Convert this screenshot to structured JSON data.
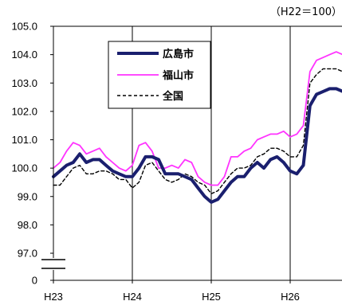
{
  "chart_data": {
    "type": "line",
    "unit_note": "（H22＝100）",
    "x_ticks": [
      "H23",
      "H24",
      "H25",
      "H26"
    ],
    "y_ticks": [
      "105.0",
      "104.0",
      "103.0",
      "102.0",
      "101.0",
      "100.0",
      "99.0",
      "98.0",
      "97.0",
      "0"
    ],
    "ylim": [
      96.5,
      105.0
    ],
    "axis_break": true,
    "grid": "vertical",
    "legend_position": "top-left",
    "months_per_tick": 12,
    "series": [
      {
        "name": "広島市",
        "color": "#1a1f6e",
        "style": "solid-thick",
        "values": [
          99.7,
          99.9,
          100.1,
          100.2,
          100.5,
          100.2,
          100.3,
          100.3,
          100.1,
          99.9,
          99.8,
          99.7,
          99.7,
          100.0,
          100.4,
          100.4,
          100.3,
          99.8,
          99.8,
          99.8,
          99.7,
          99.6,
          99.3,
          99.0,
          98.8,
          98.9,
          99.2,
          99.5,
          99.7,
          99.7,
          100.0,
          100.2,
          100.0,
          100.3,
          100.4,
          100.2,
          99.9,
          99.8,
          100.1,
          102.2,
          102.6,
          102.7,
          102.8,
          102.8,
          102.7
        ]
      },
      {
        "name": "福山市",
        "color": "#ff33ff",
        "style": "solid",
        "values": [
          100.0,
          100.2,
          100.6,
          100.9,
          100.8,
          100.5,
          100.6,
          100.7,
          100.4,
          100.2,
          100.0,
          99.9,
          100.1,
          100.8,
          100.9,
          100.6,
          100.0,
          100.0,
          100.1,
          100.0,
          100.3,
          100.2,
          99.7,
          99.5,
          99.4,
          99.4,
          99.7,
          100.4,
          100.4,
          100.6,
          100.7,
          101.0,
          101.1,
          101.2,
          101.2,
          101.3,
          101.1,
          101.2,
          101.5,
          103.4,
          103.8,
          103.9,
          104.0,
          104.1,
          104.0
        ]
      },
      {
        "name": "全国",
        "color": "#000000",
        "style": "dashed",
        "values": [
          99.4,
          99.4,
          99.7,
          100.0,
          100.1,
          99.8,
          99.8,
          99.9,
          99.9,
          99.8,
          99.6,
          99.6,
          99.3,
          99.5,
          100.1,
          100.2,
          99.9,
          99.6,
          99.5,
          99.6,
          99.8,
          99.7,
          99.5,
          99.4,
          99.1,
          99.2,
          99.5,
          99.8,
          100.0,
          100.0,
          100.1,
          100.4,
          100.5,
          100.7,
          100.7,
          100.6,
          100.4,
          100.4,
          100.8,
          103.0,
          103.3,
          103.5,
          103.5,
          103.5,
          103.4
        ]
      }
    ]
  }
}
